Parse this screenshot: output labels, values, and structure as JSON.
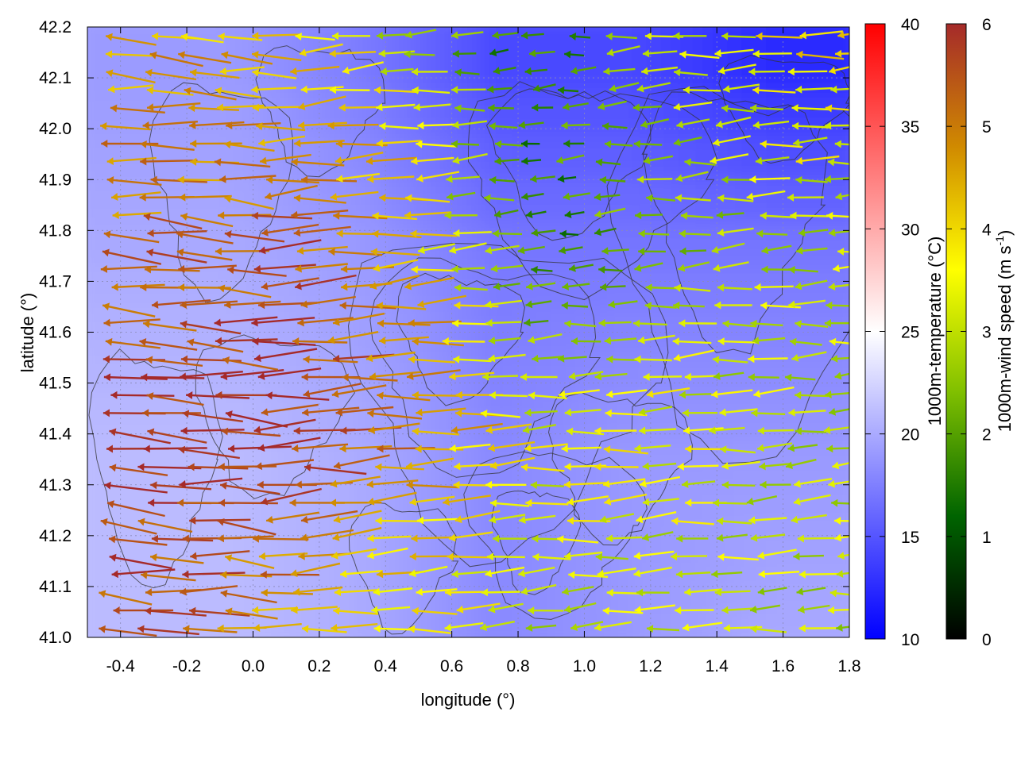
{
  "chart_data": {
    "type": "heatmap",
    "title": "",
    "xlabel": "longitude (°)",
    "ylabel": "latitude (°)",
    "xlim": [
      -0.5,
      1.8
    ],
    "ylim": [
      41.0,
      42.2
    ],
    "xticks": [
      "-0.4",
      "-0.2",
      "0.0",
      "0.2",
      "0.4",
      "0.6",
      "0.8",
      "1.0",
      "1.2",
      "1.4",
      "1.6",
      "1.8"
    ],
    "yticks": [
      "41.0",
      "41.1",
      "41.2",
      "41.3",
      "41.4",
      "41.5",
      "41.6",
      "41.7",
      "41.8",
      "41.9",
      "42.0",
      "42.1",
      "42.2"
    ],
    "grid": true,
    "overlays": [
      "wind vectors",
      "terrain contour lines"
    ],
    "colorbars": [
      {
        "label": "1000m-temperature (°C)",
        "range": [
          10,
          40
        ],
        "ticks": [
          "10",
          "15",
          "20",
          "25",
          "30",
          "35",
          "40"
        ],
        "colors": [
          "#0000ff",
          "#ffffff",
          "#ff0000"
        ]
      },
      {
        "label": "1000m-wind speed (m s-1)",
        "label_main": "1000m-wind speed (m s",
        "label_sup": "-1",
        "label_end": ")",
        "range": [
          0,
          6
        ],
        "ticks": [
          "0",
          "1",
          "2",
          "3",
          "4",
          "5",
          "6"
        ],
        "colors": [
          "#000000",
          "#006400",
          "#7fbf00",
          "#ffff00",
          "#d08a00",
          "#a52a2a"
        ]
      }
    ],
    "temperature_field_estimate": {
      "x": [
        -0.4,
        0.0,
        0.4,
        0.8,
        1.2,
        1.6
      ],
      "y": [
        41.0,
        41.4,
        41.8,
        42.2
      ],
      "values": [
        [
          21,
          21,
          20,
          18,
          19,
          20
        ],
        [
          21,
          21,
          20,
          18,
          19,
          19
        ],
        [
          20,
          20,
          19,
          17,
          17,
          17
        ],
        [
          19,
          19,
          17,
          14,
          14,
          12
        ]
      ]
    },
    "wind_direction": "predominantly easterly (vectors point westward)",
    "wind_speed_estimate": {
      "x": [
        -0.4,
        0.0,
        0.4,
        0.8,
        1.2,
        1.6
      ],
      "y": [
        41.0,
        41.4,
        41.8,
        42.2
      ],
      "values": [
        [
          5.5,
          4.5,
          3.5,
          3.0,
          3.0,
          3.0
        ],
        [
          6.0,
          6.0,
          5.0,
          3.5,
          3.5,
          3.0
        ],
        [
          5.0,
          5.5,
          4.5,
          1.5,
          2.5,
          3.0
        ],
        [
          4.5,
          4.0,
          3.0,
          1.5,
          3.0,
          4.0
        ]
      ]
    }
  }
}
